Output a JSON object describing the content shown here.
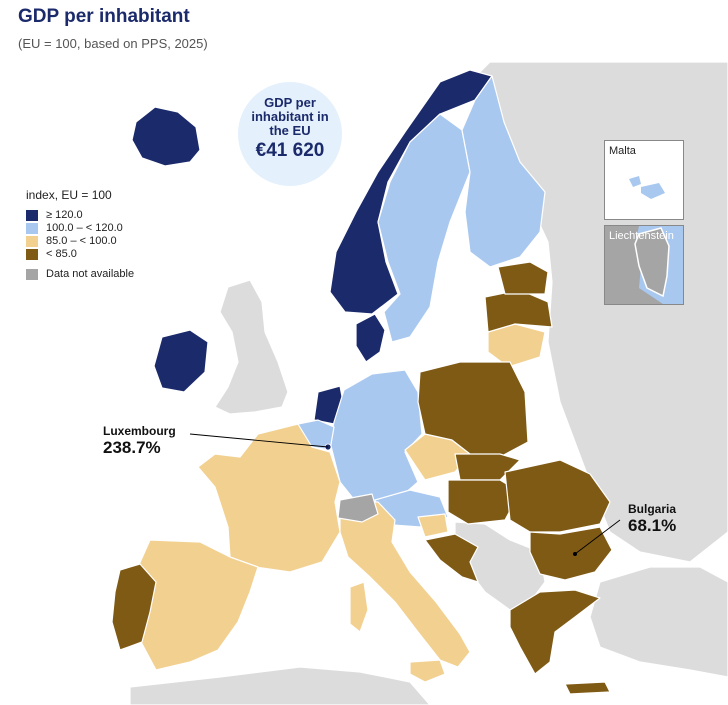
{
  "title": "GDP per inhabitant",
  "subtitle": "(EU = 100, based on PPS, 2025)",
  "eu_box": {
    "label": "GDP per inhabitant in the EU",
    "value": "€41 620"
  },
  "legend": {
    "title": "index, EU = 100",
    "items": [
      {
        "label": "≥ 120.0",
        "color": "#1b2a6b"
      },
      {
        "label": "100.0 – < 120.0",
        "color": "#a9c8f0"
      },
      {
        "label": "85.0 – < 100.0",
        "color": "#f2d090"
      },
      {
        "label": "< 85.0",
        "color": "#7f5a14"
      }
    ],
    "na": {
      "label": "Data not available",
      "color": "#a5a5a5"
    }
  },
  "insets": {
    "malta": "Malta",
    "liechtenstein": "Liechtenstein"
  },
  "callouts": {
    "luxembourg": {
      "name": "Luxembourg",
      "value": "238.7%"
    },
    "bulgaria": {
      "name": "Bulgaria",
      "value": "68.1%"
    }
  },
  "colors": {
    "non_eu": "#dcdcdc",
    "border": "#ffffff",
    "accent": "#1b2a6b"
  },
  "map_data": {
    "≥ 120.0": [
      "Iceland",
      "Norway",
      "Ireland",
      "Denmark",
      "Netherlands",
      "Luxembourg"
    ],
    "100.0 – < 120.0": [
      "Sweden",
      "Finland",
      "Germany",
      "Belgium",
      "Austria",
      "Malta",
      "Liechtenstein"
    ],
    "85.0 – < 100.0": [
      "France",
      "Spain",
      "Italy",
      "Czechia",
      "Lithuania",
      "Slovenia"
    ],
    "< 85.0": [
      "Portugal",
      "Poland",
      "Slovakia",
      "Hungary",
      "Romania",
      "Bulgaria",
      "Greece",
      "Croatia",
      "Latvia",
      "Estonia"
    ],
    "Data not available": [
      "Switzerland"
    ]
  }
}
